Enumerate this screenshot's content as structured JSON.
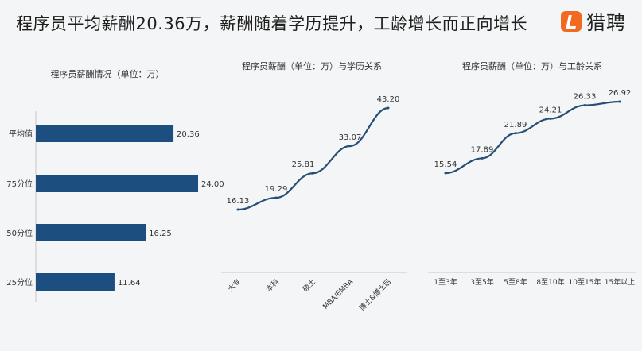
{
  "headline": "程序员平均薪酬20.36万，薪酬随着学历提升，工龄增长而正向增长",
  "brand": {
    "name": "猎聘",
    "icon": "liepin-logo-icon",
    "color": "#f26a21"
  },
  "colors": {
    "bar": "#1c4f7f",
    "line": "#264e77"
  },
  "chart_data": [
    {
      "type": "bar",
      "orientation": "horizontal",
      "title": "程序员薪酬情况（单位：万）",
      "categories": [
        "平均值",
        "75分位",
        "50分位",
        "25分位"
      ],
      "values": [
        20.36,
        24.0,
        16.25,
        11.64
      ],
      "value_labels": [
        "20.36",
        "24.00",
        "16.25",
        "11.64"
      ]
    },
    {
      "type": "line",
      "title": "程序员薪酬（单位：万）与学历关系",
      "categories": [
        "大专",
        "本科",
        "硕士",
        "MBA/EMBA",
        "博士&博士后"
      ],
      "values": [
        16.13,
        19.29,
        25.81,
        33.07,
        43.2
      ],
      "value_labels": [
        "16.13",
        "19.29",
        "25.81",
        "33.07",
        "43.20"
      ]
    },
    {
      "type": "line",
      "title": "程序员薪酬（单位：万）与工龄关系",
      "categories": [
        "1至3年",
        "3至5年",
        "5至8年",
        "8至10年",
        "10至15年",
        "15年以上"
      ],
      "values": [
        15.54,
        17.89,
        21.89,
        24.21,
        26.33,
        26.92
      ],
      "value_labels": [
        "15.54",
        "17.89",
        "21.89",
        "24.21",
        "26.33",
        "26.92"
      ]
    }
  ]
}
